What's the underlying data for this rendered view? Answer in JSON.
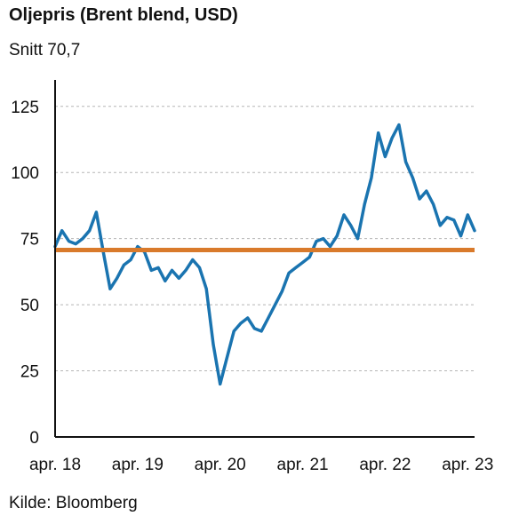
{
  "chart_data": {
    "type": "line",
    "title": "Oljepris (Brent blend, USD)",
    "subtitle": "Snitt 70,7",
    "source": "Kilde: Bloomberg",
    "xlabel": "",
    "ylabel": "",
    "ylim": [
      0,
      135
    ],
    "yticks": [
      0,
      25,
      50,
      75,
      100,
      125
    ],
    "xlim": [
      "2018-04",
      "2023-05"
    ],
    "xtick_labels": [
      "apr. 18",
      "apr. 19",
      "apr. 20",
      "apr. 21",
      "apr. 22",
      "apr. 23"
    ],
    "xtick_dates": [
      "2018-04",
      "2019-04",
      "2020-04",
      "2021-04",
      "2022-04",
      "2023-04"
    ],
    "grid": "horizontal dashed",
    "colors": {
      "price": "#1a74b0",
      "average": "#d97a2b"
    },
    "average": 70.7,
    "series": [
      {
        "x": [
          "2018-04",
          "2018-05",
          "2018-06",
          "2018-07",
          "2018-08",
          "2018-09",
          "2018-10",
          "2018-11",
          "2018-12",
          "2019-01",
          "2019-02",
          "2019-03",
          "2019-04",
          "2019-05",
          "2019-06",
          "2019-07",
          "2019-08",
          "2019-09",
          "2019-10",
          "2019-11",
          "2019-12",
          "2020-01",
          "2020-02",
          "2020-03",
          "2020-04",
          "2020-05",
          "2020-06",
          "2020-07",
          "2020-08",
          "2020-09",
          "2020-10",
          "2020-11",
          "2020-12",
          "2021-01",
          "2021-02",
          "2021-03",
          "2021-04",
          "2021-05",
          "2021-06",
          "2021-07",
          "2021-08",
          "2021-09",
          "2021-10",
          "2021-11",
          "2021-12",
          "2022-01",
          "2022-02",
          "2022-03",
          "2022-04",
          "2022-05",
          "2022-06",
          "2022-07",
          "2022-08",
          "2022-09",
          "2022-10",
          "2022-11",
          "2022-12",
          "2023-01",
          "2023-02",
          "2023-03",
          "2023-04",
          "2023-05"
        ],
        "values": [
          72,
          78,
          74,
          73,
          75,
          78,
          85,
          70,
          56,
          60,
          65,
          67,
          72,
          70,
          63,
          64,
          59,
          63,
          60,
          63,
          67,
          64,
          56,
          35,
          20,
          30,
          40,
          43,
          45,
          41,
          40,
          45,
          50,
          55,
          62,
          64,
          66,
          68,
          74,
          75,
          72,
          76,
          84,
          80,
          75,
          88,
          98,
          115,
          106,
          113,
          118,
          104,
          98,
          90,
          93,
          88,
          80,
          83,
          82,
          76,
          84,
          78
        ]
      }
    ]
  }
}
